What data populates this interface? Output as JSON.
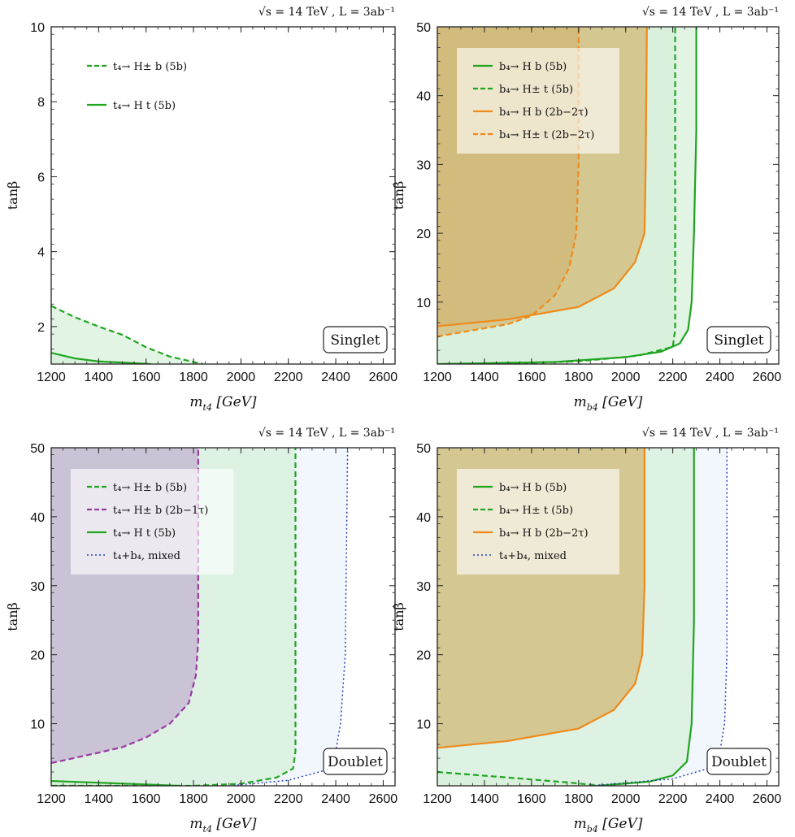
{
  "colors": {
    "green": "#1fa51f",
    "orange": "#ef8a1a",
    "purple": "#9a3aa3",
    "mixed": "#2a3fb8",
    "green_fill": "#d6efd9",
    "orange_fill": "#d2b877",
    "purple_fill": "#c8bdd3",
    "blue_fill": "#edf4fd",
    "legend_bg": "#ffffff"
  },
  "chart_data": [
    {
      "type": "area",
      "title": "√s = 14 TeV , L = 3ab⁻¹",
      "xlabel": "m_{t4} [GeV]",
      "ylabel": "tanβ",
      "xlim": [
        1200,
        2650
      ],
      "ylim": [
        1,
        10
      ],
      "xticks": [
        "1200",
        "1400",
        "1600",
        "1800",
        "2000",
        "2200",
        "2400",
        "2600"
      ],
      "yticks": [
        "2",
        "4",
        "6",
        "8",
        "10"
      ],
      "box_label": "Singlet",
      "legend_position": "top-left",
      "series": [
        {
          "name": "t₄→ H± b (5b)",
          "style": "dashed",
          "color": "green",
          "fill": "green_fill",
          "points": [
            [
              1200,
              2.55
            ],
            [
              1300,
              2.25
            ],
            [
              1400,
              2.0
            ],
            [
              1500,
              1.78
            ],
            [
              1600,
              1.45
            ],
            [
              1700,
              1.2
            ],
            [
              1840,
              1.0
            ]
          ]
        },
        {
          "name": "t₄→ H t (5b)",
          "style": "solid",
          "color": "green",
          "fill": "green_fill",
          "points": [
            [
              1200,
              1.3
            ],
            [
              1300,
              1.15
            ],
            [
              1400,
              1.07
            ],
            [
              1500,
              1.04
            ],
            [
              1620,
              1.0
            ]
          ]
        }
      ]
    },
    {
      "type": "area",
      "title": "√s = 14 TeV , L = 3ab⁻¹",
      "xlabel": "m_{b4} [GeV]",
      "ylabel": "tanβ",
      "xlim": [
        1200,
        2650
      ],
      "ylim": [
        1,
        50
      ],
      "xticks": [
        "1200",
        "1400",
        "1600",
        "1800",
        "2000",
        "2200",
        "2400",
        "2600"
      ],
      "yticks": [
        "10",
        "20",
        "30",
        "40",
        "50"
      ],
      "box_label": "Singlet",
      "legend_position": "top-left",
      "series": [
        {
          "name": "b₄→ H b (5b)",
          "style": "solid",
          "color": "green",
          "fill": "green_fill",
          "points": [
            [
              1200,
              1.0
            ],
            [
              1700,
              1.3
            ],
            [
              2000,
              2.0
            ],
            [
              2150,
              2.8
            ],
            [
              2230,
              4.0
            ],
            [
              2265,
              6
            ],
            [
              2280,
              10
            ],
            [
              2290,
              20
            ],
            [
              2300,
              35
            ],
            [
              2300,
              50
            ]
          ]
        },
        {
          "name": "b₄→ H± t (5b)",
          "style": "dashed",
          "color": "green",
          "fill": "green_fill",
          "points": [
            [
              1450,
              1.0
            ],
            [
              1800,
              1.4
            ],
            [
              2050,
              2.2
            ],
            [
              2200,
              3.5
            ],
            [
              2210,
              6
            ],
            [
              2210,
              20
            ],
            [
              2210,
              50
            ]
          ]
        },
        {
          "name": "b₄→ H b (2b−2τ)",
          "style": "solid",
          "color": "orange",
          "fill": "orange_fill",
          "points": [
            [
              1200,
              6.5
            ],
            [
              1500,
              7.5
            ],
            [
              1800,
              9.3
            ],
            [
              1950,
              12
            ],
            [
              2040,
              15.8
            ],
            [
              2080,
              20
            ],
            [
              2085,
              30
            ],
            [
              2090,
              50
            ]
          ]
        },
        {
          "name": "b₄→ H± t (2b−2τ)",
          "style": "dashed",
          "color": "orange",
          "fill": "orange_fill",
          "points": [
            [
              1200,
              5.0
            ],
            [
              1500,
              6.8
            ],
            [
              1600,
              8
            ],
            [
              1700,
              11
            ],
            [
              1760,
              15
            ],
            [
              1790,
              20
            ],
            [
              1800,
              30
            ],
            [
              1800,
              50
            ]
          ]
        }
      ]
    },
    {
      "type": "area",
      "title": "√s = 14 TeV , L = 3ab⁻¹",
      "xlabel": "m_{t4} [GeV]",
      "ylabel": "tanβ",
      "xlim": [
        1200,
        2650
      ],
      "ylim": [
        1,
        50
      ],
      "xticks": [
        "1200",
        "1400",
        "1600",
        "1800",
        "2000",
        "2200",
        "2400",
        "2600"
      ],
      "yticks": [
        "10",
        "20",
        "30",
        "40",
        "50"
      ],
      "box_label": "Doublet",
      "legend_position": "top-left",
      "series": [
        {
          "name": "t₄→ H± b (5b)",
          "style": "dashed",
          "color": "green",
          "fill": "green_fill",
          "points": [
            [
              1200,
              1.0
            ],
            [
              1800,
              1.0
            ],
            [
              2000,
              1.3
            ],
            [
              2150,
              2.2
            ],
            [
              2220,
              3.5
            ],
            [
              2230,
              6
            ],
            [
              2230,
              20
            ],
            [
              2230,
              50
            ]
          ]
        },
        {
          "name": "t₄→ H± b (2b−1τ)",
          "style": "dashed",
          "color": "purple",
          "fill": "purple_fill",
          "points": [
            [
              1200,
              4.3
            ],
            [
              1400,
              5.8
            ],
            [
              1500,
              6.6
            ],
            [
              1600,
              8
            ],
            [
              1700,
              10
            ],
            [
              1780,
              13
            ],
            [
              1810,
              17
            ],
            [
              1820,
              22
            ],
            [
              1820,
              50
            ]
          ]
        },
        {
          "name": "t₄→ H t (5b)",
          "style": "solid",
          "color": "green",
          "fill": "green_fill",
          "points": [
            [
              1200,
              1.7
            ],
            [
              1400,
              1.45
            ],
            [
              1600,
              1.2
            ],
            [
              1740,
              1.0
            ]
          ]
        },
        {
          "name": "t₄+b₄, mixed",
          "style": "dotted",
          "color": "mixed",
          "fill": "blue_fill",
          "points": [
            [
              1950,
              1.0
            ],
            [
              2200,
              1.8
            ],
            [
              2350,
              3.2
            ],
            [
              2400,
              6
            ],
            [
              2420,
              10
            ],
            [
              2440,
              20
            ],
            [
              2450,
              50
            ]
          ]
        }
      ]
    },
    {
      "type": "area",
      "title": "√s = 14 TeV , L = 3ab⁻¹",
      "xlabel": "m_{b4} [GeV]",
      "ylabel": "tanβ",
      "xlim": [
        1200,
        2650
      ],
      "ylim": [
        1,
        50
      ],
      "xticks": [
        "1200",
        "1400",
        "1600",
        "1800",
        "2000",
        "2200",
        "2400",
        "2600"
      ],
      "yticks": [
        "10",
        "20",
        "30",
        "40",
        "50"
      ],
      "box_label": "Doublet",
      "legend_position": "top-left",
      "series": [
        {
          "name": "b₄→ H b (5b)",
          "style": "solid",
          "color": "green",
          "fill": "green_fill",
          "points": [
            [
              1880,
              1.0
            ],
            [
              2100,
              1.6
            ],
            [
              2200,
              2.5
            ],
            [
              2260,
              4.5
            ],
            [
              2280,
              10
            ],
            [
              2290,
              25
            ],
            [
              2290,
              50
            ]
          ]
        },
        {
          "name": "b₄→ H± t (5b)",
          "style": "dashed",
          "color": "green",
          "fill": "green_fill",
          "points": [
            [
              1200,
              3.0
            ],
            [
              1500,
              2.2
            ],
            [
              1750,
              1.5
            ],
            [
              1900,
              1.0
            ]
          ]
        },
        {
          "name": "b₄→ H b (2b−2τ)",
          "style": "solid",
          "color": "orange",
          "fill": "orange_fill",
          "points": [
            [
              1200,
              6.5
            ],
            [
              1500,
              7.5
            ],
            [
              1800,
              9.3
            ],
            [
              1950,
              12
            ],
            [
              2040,
              15.8
            ],
            [
              2070,
              20
            ],
            [
              2080,
              30
            ],
            [
              2080,
              50
            ]
          ]
        },
        {
          "name": "t₄+b₄, mixed",
          "style": "dotted",
          "color": "mixed",
          "fill": "blue_fill",
          "points": [
            [
              1850,
              1.0
            ],
            [
              2200,
              2.0
            ],
            [
              2350,
              3.5
            ],
            [
              2400,
              6
            ],
            [
              2420,
              10
            ],
            [
              2430,
              20
            ],
            [
              2430,
              50
            ]
          ]
        }
      ]
    }
  ]
}
